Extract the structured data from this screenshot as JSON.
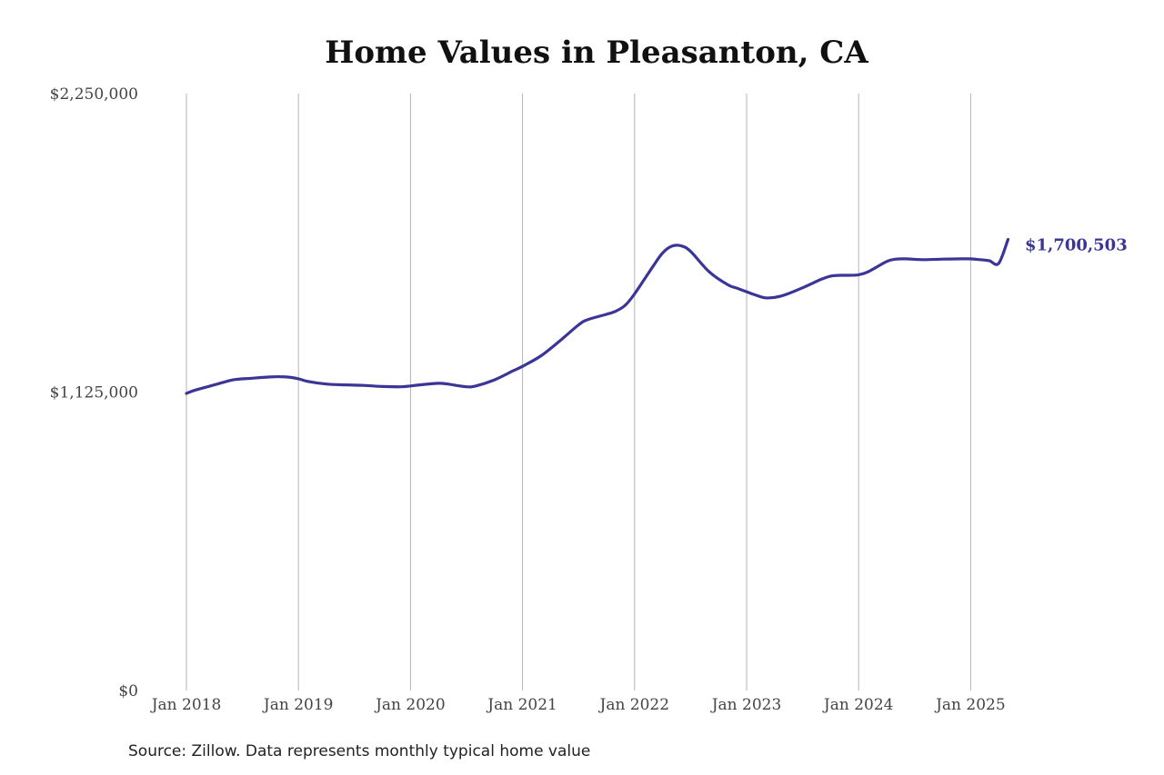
{
  "chart_data": {
    "type": "line",
    "title": "Home Values in Pleasanton, CA",
    "xlabel": "",
    "ylabel": "",
    "ylim": [
      0,
      2250000
    ],
    "y_ticks": [
      {
        "value": 0,
        "label": "$0"
      },
      {
        "value": 1125000,
        "label": "$1,125,000"
      },
      {
        "value": 2250000,
        "label": "$2,250,000"
      }
    ],
    "x_ticks": [
      "Jan 2018",
      "Jan 2019",
      "Jan 2020",
      "Jan 2021",
      "Jan 2022",
      "Jan 2023",
      "Jan 2024",
      "Jan 2025"
    ],
    "x_tick_years": [
      2018,
      2019,
      2020,
      2021,
      2022,
      2023,
      2024,
      2025
    ],
    "xlim": [
      "2018-01",
      "2025-05"
    ],
    "grid": "vertical",
    "line_color": "#3a3597",
    "end_label": "$1,700,503",
    "series": [
      {
        "x": [
          "2018-01",
          "2018-02",
          "2018-04",
          "2018-06",
          "2018-08",
          "2018-10",
          "2018-11",
          "2018-12",
          "2019-01",
          "2019-02",
          "2019-04",
          "2019-06",
          "2019-08",
          "2019-10",
          "2019-12",
          "2020-01",
          "2020-02",
          "2020-04",
          "2020-05",
          "2020-07",
          "2020-08",
          "2020-10",
          "2020-12",
          "2021-01",
          "2021-03",
          "2021-05",
          "2021-07",
          "2021-08",
          "2021-10",
          "2021-11",
          "2021-12",
          "2022-01",
          "2022-03",
          "2022-04",
          "2022-05",
          "2022-06",
          "2022-07",
          "2022-09",
          "2022-11",
          "2022-12",
          "2023-01",
          "2023-02",
          "2023-03",
          "2023-04",
          "2023-05",
          "2023-07",
          "2023-09",
          "2023-10",
          "2023-11",
          "2023-12",
          "2024-01",
          "2024-02",
          "2024-04",
          "2024-05",
          "2024-06",
          "2024-08",
          "2024-10",
          "2024-12",
          "2025-01",
          "2025-02",
          "2025-03",
          "2025-04",
          "2025-05"
        ],
        "values": [
          1120000,
          1133000,
          1152000,
          1171000,
          1177000,
          1182000,
          1183000,
          1181000,
          1175000,
          1165000,
          1155000,
          1152000,
          1150000,
          1146000,
          1145000,
          1148000,
          1152000,
          1158000,
          1155000,
          1145000,
          1148000,
          1171000,
          1205000,
          1222000,
          1262000,
          1318000,
          1378000,
          1398000,
          1418000,
          1430000,
          1452000,
          1495000,
          1600000,
          1649000,
          1675000,
          1676000,
          1655000,
          1578000,
          1529000,
          1516000,
          1503000,
          1490000,
          1480000,
          1482000,
          1490000,
          1518000,
          1550000,
          1562000,
          1565000,
          1565000,
          1567000,
          1578000,
          1617000,
          1626000,
          1627000,
          1624000,
          1626000,
          1627000,
          1627000,
          1624000,
          1620000,
          1610000,
          1700503
        ]
      }
    ]
  },
  "source": "Source: Zillow. Data represents monthly typical home value"
}
